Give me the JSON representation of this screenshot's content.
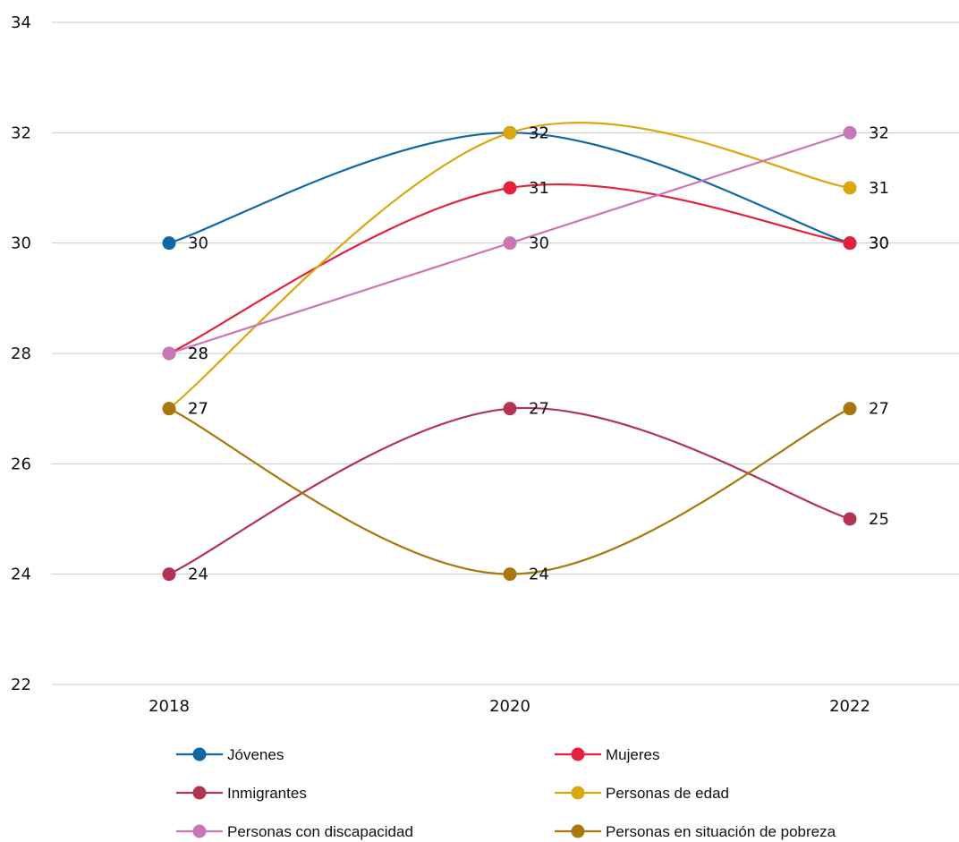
{
  "chart_data": {
    "type": "line",
    "x": [
      "2018",
      "2020",
      "2022"
    ],
    "ylim": [
      22,
      34
    ],
    "yticks": [
      22,
      24,
      26,
      28,
      30,
      32,
      34
    ],
    "grid": true,
    "smooth": true,
    "legend_position": "bottom",
    "series": [
      {
        "name": "Jóvenes",
        "color": "#0f67a3",
        "values": [
          30,
          32,
          30
        ]
      },
      {
        "name": "Mujeres",
        "color": "#e3213d",
        "values": [
          28,
          31,
          30
        ]
      },
      {
        "name": "Inmigrantes",
        "color": "#b23352",
        "values": [
          24,
          27,
          25
        ]
      },
      {
        "name": "Personas de edad",
        "color": "#dba70e",
        "values": [
          27,
          32,
          31
        ]
      },
      {
        "name": "Personas con discapacidad",
        "color": "#c877b4",
        "values": [
          28,
          30,
          32
        ]
      },
      {
        "name": "Personas en situación de pobreza",
        "color": "#a9780c",
        "values": [
          27,
          24,
          27
        ]
      }
    ]
  }
}
